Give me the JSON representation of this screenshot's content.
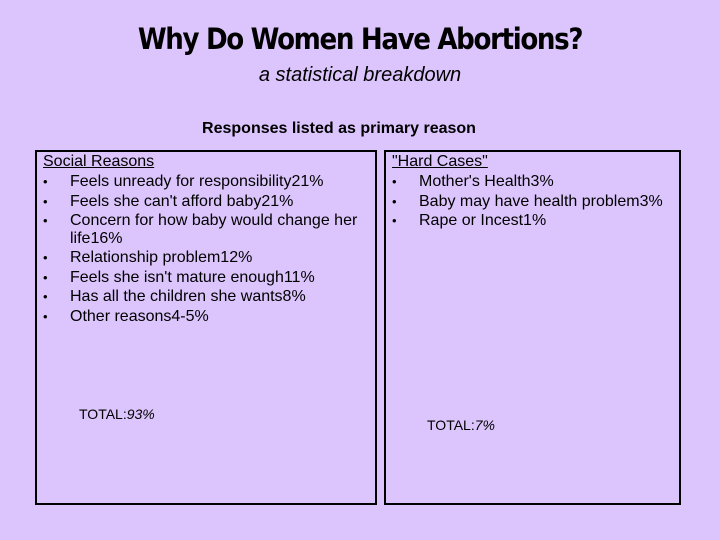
{
  "slide": {
    "title": "Why Do Women Have Abortions?",
    "subtitle": "a statistical breakdown",
    "heading": "Responses listed as primary reason"
  },
  "left": {
    "header": "Social Reasons ",
    "items": [
      "Feels unready for responsibility21%",
      "Feels she can't afford baby21%",
      "Concern for how baby would change her life16%",
      "Relationship problem12%",
      "Feels she isn't mature enough11%",
      " Has all the children she wants8%",
      " Other reasons4-5%"
    ],
    "total_label": "TOTAL:",
    "total_value": "93%"
  },
  "right": {
    "header": "\"Hard Cases\"",
    "items": [
      "Mother's Health3%",
      "Baby may have health problem3%",
      "Rape or Incest1%"
    ],
    "total_label": "TOTAL:",
    "total_value": "7%"
  },
  "bullet": "•"
}
